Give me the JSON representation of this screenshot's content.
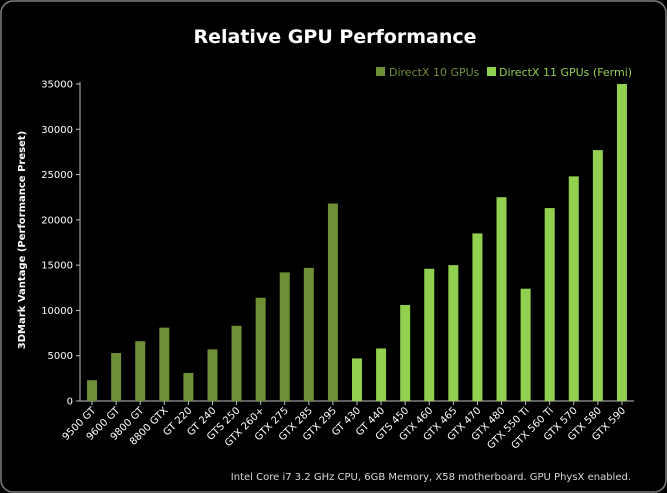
{
  "chart_data": {
    "type": "bar",
    "title": "Relative GPU Performance",
    "ylabel": "3DMark Vantage (Performance Preset)",
    "xlabel": "",
    "ylim": [
      0,
      35000
    ],
    "yticks": [
      "0",
      "5000",
      "10000",
      "15000",
      "20000",
      "25000",
      "30000",
      "35000"
    ],
    "grid": false,
    "legend_position": "top-right",
    "categories": [
      "9500 GT",
      "9600 GT",
      "9800 GT",
      "8800 GTX",
      "GT 220",
      "GT 240",
      "GTS 250",
      "GTX 260+",
      "GTX 275",
      "GTX 285",
      "GTX 295",
      "GT 430",
      "GT 440",
      "GTS 450",
      "GTX 460",
      "GTX 465",
      "GTX 470",
      "GTX 480",
      "GTX 550 Ti",
      "GTX 560 Ti",
      "GTX 570",
      "GTX 580",
      "GTX 590"
    ],
    "values": [
      2300,
      5300,
      6600,
      8100,
      3100,
      5700,
      8300,
      11400,
      14200,
      14700,
      21800,
      4700,
      5800,
      10600,
      14600,
      15000,
      18500,
      22500,
      12400,
      21300,
      24800,
      27700,
      35000
    ],
    "groups": [
      {
        "name": "DirectX 10 GPUs",
        "color": "#6f8f36",
        "count": 11
      },
      {
        "name": "DirectX 11 GPUs (Fermi)",
        "color": "#92d050",
        "count": 12
      }
    ],
    "footnote": "Intel Core i7 3.2 GHz CPU, 6GB Memory, X58 motherboard. GPU PhysX enabled."
  },
  "colors": {
    "background": "#000000",
    "panel": "#000000",
    "border": "#7f7f7f",
    "text": "#ffffff"
  }
}
